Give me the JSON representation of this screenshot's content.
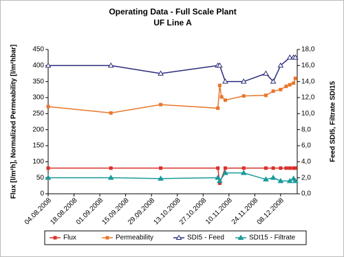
{
  "chart_data": {
    "type": "line",
    "title": "Operating Data - Full Scale Plant",
    "subtitle": "UF Line A",
    "y_label": "Flux [l/m²h], Normalized Permeability [l/m²hbar]",
    "y2_label": "Feed SDI5, Filtrate SDI15",
    "xlim": [
      "04.08.2008",
      "17.12.2008"
    ],
    "xticks": [
      "04.08.2008",
      "18.08.2008",
      "01.09.2008",
      "15.09.2008",
      "29.09.2008",
      "13.10.2008",
      "27.10.2008",
      "10.11.2008",
      "24.11.2008",
      "08.12.2008"
    ],
    "ylim": [
      0,
      450
    ],
    "yticks": [
      0,
      50,
      100,
      150,
      200,
      250,
      300,
      350,
      400,
      450
    ],
    "y2lim": [
      0,
      18
    ],
    "y2ticks": [
      {
        "value": 0,
        "label": "0,0"
      },
      {
        "value": 2,
        "label": "2,0"
      },
      {
        "value": 4,
        "label": "4,0"
      },
      {
        "value": 6,
        "label": "6,0"
      },
      {
        "value": 8,
        "label": "8,0"
      },
      {
        "value": 10,
        "label": "10,0"
      },
      {
        "value": 12,
        "label": "12,0"
      },
      {
        "value": 14,
        "label": "14,0"
      },
      {
        "value": 16,
        "label": "16,0"
      },
      {
        "value": 18,
        "label": "18,0"
      }
    ],
    "grid": false,
    "legend": "bottom",
    "series": [
      {
        "name": "Flux",
        "color": "#d9302a",
        "marker": "square",
        "x": [
          "04.08.2008",
          "07.09.2008",
          "04.10.2008",
          "04.11.2008",
          "05.11.2008",
          "08.11.2008",
          "18.11.2008",
          "30.11.2008",
          "04.12.2008",
          "08.12.2008",
          "11.12.2008",
          "13.12.2008",
          "15.12.2008",
          "16.12.2008"
        ],
        "values": [
          80,
          80,
          80,
          80,
          33,
          80,
          80,
          80,
          80,
          80,
          80,
          80,
          80,
          80
        ]
      },
      {
        "name": "Permeability",
        "color": "#e8762b",
        "marker": "square",
        "x": [
          "04.08.2008",
          "07.09.2008",
          "04.10.2008",
          "04.11.2008",
          "05.11.2008",
          "06.11.2008",
          "08.11.2008",
          "18.11.2008",
          "30.11.2008",
          "04.12.2008",
          "08.12.2008",
          "11.12.2008",
          "13.12.2008",
          "15.12.2008",
          "16.12.2008"
        ],
        "values": [
          272,
          252,
          278,
          267,
          338,
          302,
          292,
          305,
          307,
          320,
          325,
          335,
          340,
          345,
          360
        ]
      },
      {
        "name": "SDI5 - Feed",
        "color": "#2a2a7a",
        "marker": "triangle-open",
        "axis": "y2",
        "x": [
          "04.08.2008",
          "07.09.2008",
          "04.10.2008",
          "04.11.2008",
          "05.11.2008",
          "08.11.2008",
          "18.11.2008",
          "30.11.2008",
          "04.12.2008",
          "08.12.2008",
          "13.12.2008",
          "15.12.2008",
          "16.12.2008"
        ],
        "values": [
          16,
          16,
          15,
          16,
          16,
          14,
          14,
          15,
          14,
          16,
          17,
          17,
          17
        ]
      },
      {
        "name": "SDI15 - Filtrate",
        "color": "#1a9a9a",
        "marker": "triangle",
        "axis": "y2",
        "x": [
          "04.08.2008",
          "07.09.2008",
          "04.10.2008",
          "04.11.2008",
          "05.11.2008",
          "08.11.2008",
          "18.11.2008",
          "30.11.2008",
          "04.12.2008",
          "08.12.2008",
          "13.12.2008",
          "15.12.2008",
          "16.12.2008"
        ],
        "values": [
          2.0,
          2.0,
          1.9,
          2.0,
          1.6,
          2.6,
          2.6,
          1.8,
          2.0,
          1.6,
          1.6,
          1.9,
          1.6
        ]
      }
    ]
  }
}
